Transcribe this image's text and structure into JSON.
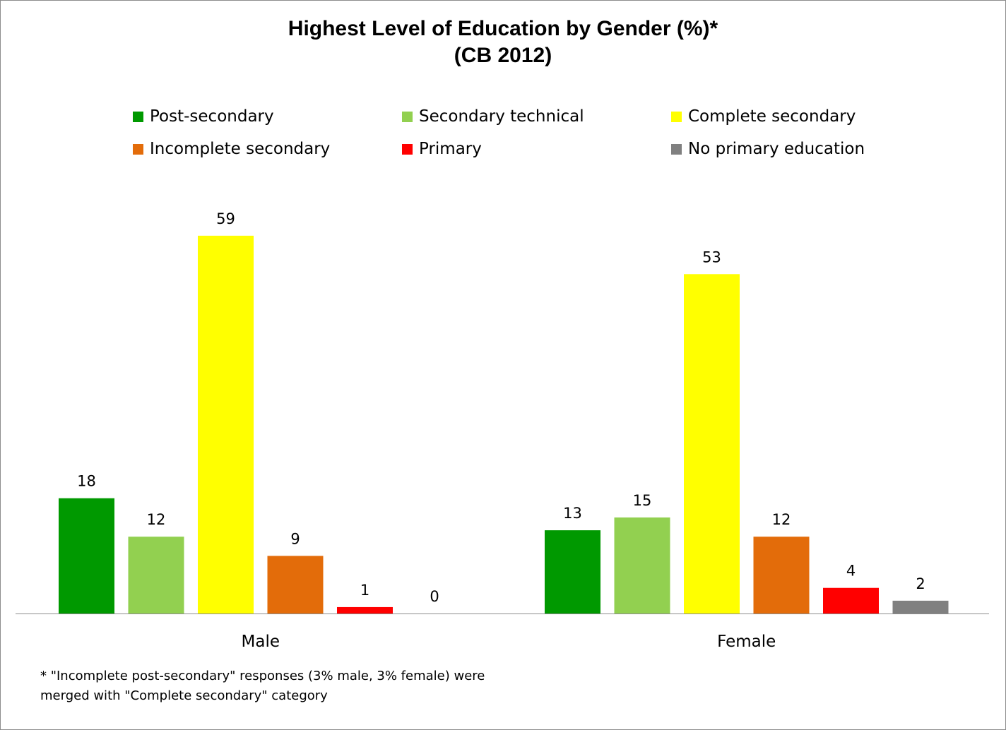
{
  "chart_data": {
    "type": "bar",
    "title_line1": "Highest Level of Education by Gender (%)*",
    "title_line2": "(CB 2012)",
    "categories": [
      "Male",
      "Female"
    ],
    "series": [
      {
        "name": "Post-secondary",
        "color": "#009900",
        "values": [
          18,
          13
        ]
      },
      {
        "name": "Secondary technical",
        "color": "#92d050",
        "values": [
          12,
          15
        ]
      },
      {
        "name": "Complete secondary",
        "color": "#ffff00",
        "values": [
          59,
          53
        ]
      },
      {
        "name": "Incomplete secondary",
        "color": "#e36c0a",
        "values": [
          9,
          12
        ]
      },
      {
        "name": "Primary",
        "color": "#ff0000",
        "values": [
          1,
          4
        ]
      },
      {
        "name": "No primary education",
        "color": "#808080",
        "values": [
          0,
          2
        ]
      }
    ],
    "ylim": [
      0,
      65
    ],
    "xlabel": "",
    "ylabel": "",
    "legend_position": "top",
    "grid": false
  },
  "footnote_line1": "* \"Incomplete post-secondary\" responses (3% male, 3% female) were",
  "footnote_line2": "merged with \"Complete secondary\" category"
}
